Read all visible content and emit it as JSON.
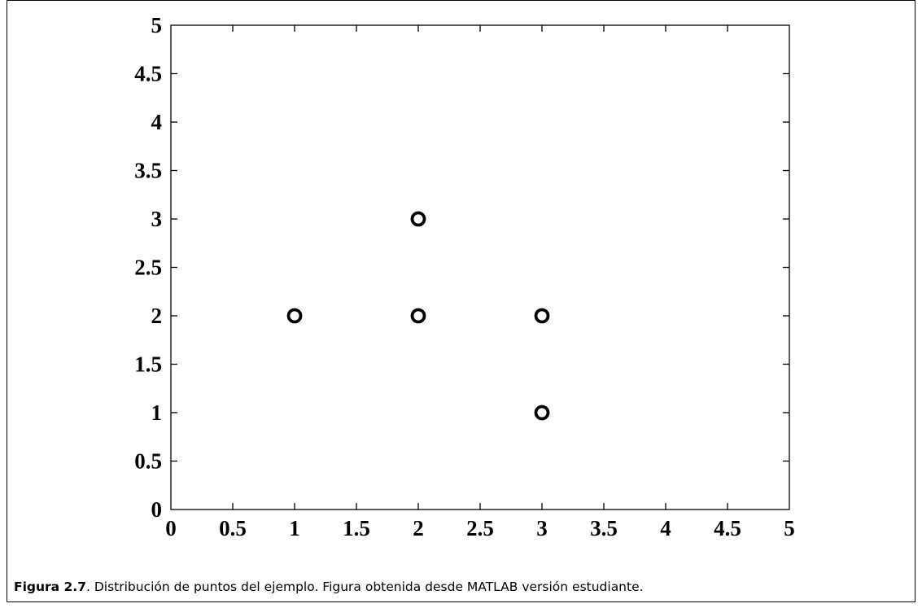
{
  "chart_data": {
    "type": "scatter",
    "title": "",
    "xlabel": "",
    "ylabel": "",
    "xlim": [
      0,
      5
    ],
    "ylim": [
      0,
      5
    ],
    "xticks": [
      "0",
      "0.5",
      "1",
      "1.5",
      "2",
      "2.5",
      "3",
      "3.5",
      "4",
      "4.5",
      "5"
    ],
    "yticks": [
      "0",
      "0.5",
      "1",
      "1.5",
      "2",
      "2.5",
      "3",
      "3.5",
      "4",
      "4.5",
      "5"
    ],
    "grid": false,
    "marker": "circle-open",
    "color": "#000000",
    "points": [
      {
        "x": 1,
        "y": 2
      },
      {
        "x": 2,
        "y": 3
      },
      {
        "x": 2,
        "y": 2
      },
      {
        "x": 3,
        "y": 2
      },
      {
        "x": 3,
        "y": 1
      }
    ]
  },
  "caption": {
    "label": "Figura 2.7",
    "text": ". Distribución de puntos del ejemplo. Figura obtenida desde MATLAB versión estudiante."
  }
}
